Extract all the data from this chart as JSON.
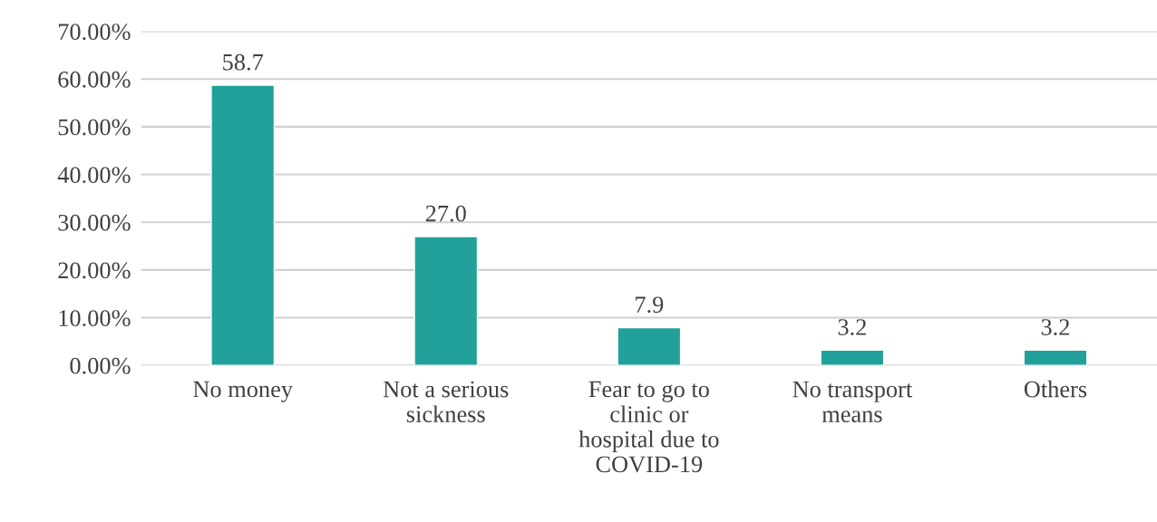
{
  "chart_data": {
    "type": "bar",
    "categories": [
      "No money",
      "Not a serious\nsickness",
      "Fear to go to\nclinic or\nhospital due to\nCOVID-19",
      "No transport\nmeans",
      "Others"
    ],
    "values": [
      58.7,
      27.0,
      7.9,
      3.2,
      3.2
    ],
    "value_labels": [
      "58.7",
      "27.0",
      "7.9",
      "3.2",
      "3.2"
    ],
    "color": "#21a19a",
    "ylim": [
      0,
      70
    ],
    "yticks": [
      {
        "value": 0,
        "label": "0.00%"
      },
      {
        "value": 10,
        "label": "10.00%"
      },
      {
        "value": 20,
        "label": "20.00%"
      },
      {
        "value": 30,
        "label": "30.00%"
      },
      {
        "value": 40,
        "label": "40.00%"
      },
      {
        "value": 50,
        "label": "50.00%"
      },
      {
        "value": 60,
        "label": "60.00%"
      },
      {
        "value": 70,
        "label": "70.00%"
      }
    ],
    "grid": "y",
    "legend": false
  }
}
